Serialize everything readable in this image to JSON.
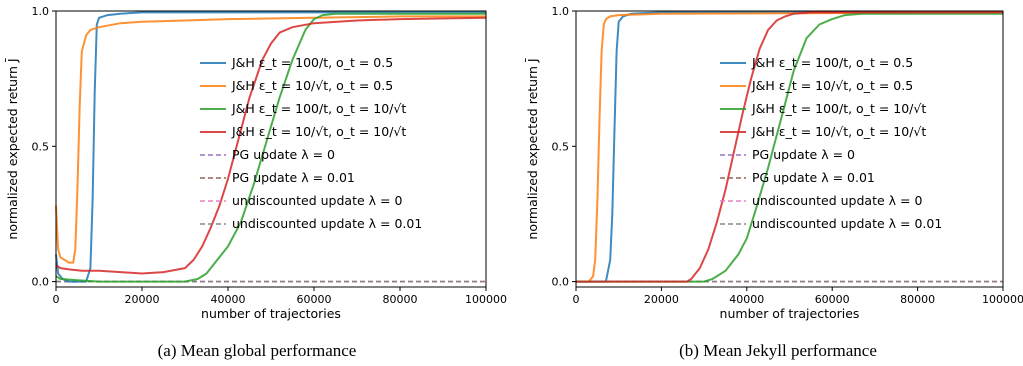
{
  "chart_data": [
    {
      "type": "line",
      "caption": "(a) Mean global performance",
      "xlabel": "number of trajectories",
      "ylabel": "normalized expected return J̄",
      "xlim": [
        0,
        100000
      ],
      "ylim": [
        -0.02,
        1.0
      ],
      "xticks": [
        0,
        20000,
        40000,
        60000,
        80000,
        100000
      ],
      "xtick_labels": [
        "0",
        "20000",
        "40000",
        "60000",
        "80000",
        "100000"
      ],
      "yticks": [
        0.0,
        0.5,
        1.0
      ],
      "ytick_labels": [
        "0.0",
        "0.5",
        "1.0"
      ],
      "grid": false,
      "legend_position": "right",
      "series": [
        {
          "name": "J&H ε_t = 100/t, o_t = 0.5",
          "color": "#1f77b4",
          "x": [
            0,
            500,
            1500,
            3000,
            5000,
            7000,
            8000,
            8500,
            9000,
            9500,
            10000,
            12000,
            15000,
            20000,
            40000,
            60000,
            100000
          ],
          "y": [
            0.1,
            0.03,
            0.01,
            0.0,
            0.0,
            0.0,
            0.05,
            0.3,
            0.7,
            0.95,
            0.975,
            0.985,
            0.99,
            0.995,
            0.995,
            0.995,
            0.995
          ]
        },
        {
          "name": "J&H ε_t = 10/√t, o_t = 0.5",
          "color": "#ff7f0e",
          "x": [
            0,
            500,
            1000,
            2000,
            3000,
            4000,
            4500,
            5000,
            5500,
            6000,
            7000,
            8000,
            10000,
            15000,
            20000,
            30000,
            40000,
            60000,
            80000,
            100000
          ],
          "y": [
            0.28,
            0.12,
            0.09,
            0.08,
            0.07,
            0.07,
            0.12,
            0.35,
            0.65,
            0.85,
            0.91,
            0.93,
            0.94,
            0.955,
            0.96,
            0.965,
            0.97,
            0.975,
            0.98,
            0.98
          ]
        },
        {
          "name": "J&H ε_t = 100/t, o_t = 10/√t",
          "color": "#2ca02c",
          "x": [
            0,
            1000,
            5000,
            10000,
            20000,
            30000,
            33000,
            35000,
            37000,
            40000,
            43000,
            46000,
            49000,
            52000,
            55000,
            58000,
            60000,
            62000,
            65000,
            70000,
            100000
          ],
          "y": [
            0.02,
            0.01,
            0.005,
            0.0,
            0.0,
            0.0,
            0.01,
            0.03,
            0.07,
            0.13,
            0.22,
            0.36,
            0.52,
            0.68,
            0.82,
            0.93,
            0.97,
            0.985,
            0.99,
            0.99,
            0.99
          ]
        },
        {
          "name": "J&H ε_t = 10/√t, o_t = 10/√t",
          "color": "#d62728",
          "x": [
            0,
            1000,
            3000,
            6000,
            10000,
            15000,
            20000,
            25000,
            30000,
            32000,
            34000,
            36000,
            38000,
            40000,
            42000,
            45000,
            48000,
            50000,
            52000,
            55000,
            60000,
            70000,
            80000,
            100000
          ],
          "y": [
            0.06,
            0.05,
            0.045,
            0.04,
            0.04,
            0.035,
            0.03,
            0.035,
            0.05,
            0.08,
            0.13,
            0.2,
            0.28,
            0.38,
            0.5,
            0.68,
            0.82,
            0.88,
            0.92,
            0.94,
            0.955,
            0.965,
            0.97,
            0.975
          ]
        },
        {
          "name": "PG update λ = 0",
          "color": "#9467bd",
          "dashed": true,
          "x": [
            0,
            100000
          ],
          "y": [
            0.0,
            0.0
          ]
        },
        {
          "name": "PG update λ = 0.01",
          "color": "#8c564b",
          "dashed": true,
          "x": [
            0,
            100000
          ],
          "y": [
            0.0,
            0.0
          ]
        },
        {
          "name": "undiscounted update λ = 0",
          "color": "#e377c2",
          "dashed": true,
          "x": [
            0,
            100000
          ],
          "y": [
            0.0,
            0.0
          ]
        },
        {
          "name": "undiscounted update λ = 0.01",
          "color": "#7f7f7f",
          "dashed": true,
          "x": [
            0,
            100000
          ],
          "y": [
            0.0,
            0.0
          ]
        }
      ]
    },
    {
      "type": "line",
      "caption": "(b) Mean Jekyll performance",
      "xlabel": "number of trajectories",
      "ylabel": "normalized expected return J̄",
      "xlim": [
        0,
        100000
      ],
      "ylim": [
        -0.02,
        1.0
      ],
      "xticks": [
        0,
        20000,
        40000,
        60000,
        80000,
        100000
      ],
      "xtick_labels": [
        "0",
        "20000",
        "40000",
        "60000",
        "80000",
        "100000"
      ],
      "yticks": [
        0.0,
        0.5,
        1.0
      ],
      "ytick_labels": [
        "0.0",
        "0.5",
        "1.0"
      ],
      "grid": false,
      "legend_position": "right",
      "series": [
        {
          "name": "J&H ε_t = 100/t, o_t = 0.5",
          "color": "#1f77b4",
          "x": [
            0,
            5000,
            7000,
            8000,
            8500,
            9000,
            9500,
            10000,
            11000,
            13000,
            20000,
            100000
          ],
          "y": [
            0.0,
            0.0,
            0.0,
            0.08,
            0.25,
            0.55,
            0.85,
            0.96,
            0.98,
            0.99,
            0.995,
            0.995
          ]
        },
        {
          "name": "J&H ε_t = 10/√t, o_t = 0.5",
          "color": "#ff7f0e",
          "x": [
            0,
            3000,
            4000,
            4500,
            5000,
            5500,
            6000,
            6500,
            7000,
            8000,
            10000,
            20000,
            100000
          ],
          "y": [
            0.0,
            0.0,
            0.02,
            0.08,
            0.3,
            0.6,
            0.85,
            0.95,
            0.97,
            0.98,
            0.985,
            0.99,
            0.995
          ]
        },
        {
          "name": "J&H ε_t = 100/t, o_t = 10/√t",
          "color": "#2ca02c",
          "x": [
            0,
            30000,
            32000,
            35000,
            38000,
            40000,
            42000,
            45000,
            48000,
            51000,
            54000,
            57000,
            60000,
            63000,
            67000,
            100000
          ],
          "y": [
            0.0,
            0.0,
            0.01,
            0.04,
            0.1,
            0.16,
            0.26,
            0.42,
            0.6,
            0.78,
            0.9,
            0.95,
            0.97,
            0.985,
            0.99,
            0.99
          ]
        },
        {
          "name": "J&H ε_t = 10/√t, o_t = 10/√t",
          "color": "#d62728",
          "x": [
            0,
            26000,
            27000,
            29000,
            31000,
            33000,
            35000,
            37000,
            39000,
            41000,
            43000,
            45000,
            47000,
            49000,
            51000,
            55000,
            60000,
            100000
          ],
          "y": [
            0.0,
            0.0,
            0.01,
            0.05,
            0.12,
            0.22,
            0.34,
            0.48,
            0.62,
            0.75,
            0.86,
            0.93,
            0.965,
            0.98,
            0.99,
            0.995,
            0.995,
            0.995
          ]
        },
        {
          "name": "PG update λ = 0",
          "color": "#9467bd",
          "dashed": true,
          "x": [
            0,
            100000
          ],
          "y": [
            0.0,
            0.0
          ]
        },
        {
          "name": "PG update λ = 0.01",
          "color": "#8c564b",
          "dashed": true,
          "x": [
            0,
            100000
          ],
          "y": [
            0.0,
            0.0
          ]
        },
        {
          "name": "undiscounted update λ = 0",
          "color": "#e377c2",
          "dashed": true,
          "x": [
            0,
            100000
          ],
          "y": [
            0.0,
            0.0
          ]
        },
        {
          "name": "undiscounted update λ = 0.01",
          "color": "#7f7f7f",
          "dashed": true,
          "x": [
            0,
            100000
          ],
          "y": [
            0.0,
            0.0
          ]
        }
      ]
    }
  ]
}
